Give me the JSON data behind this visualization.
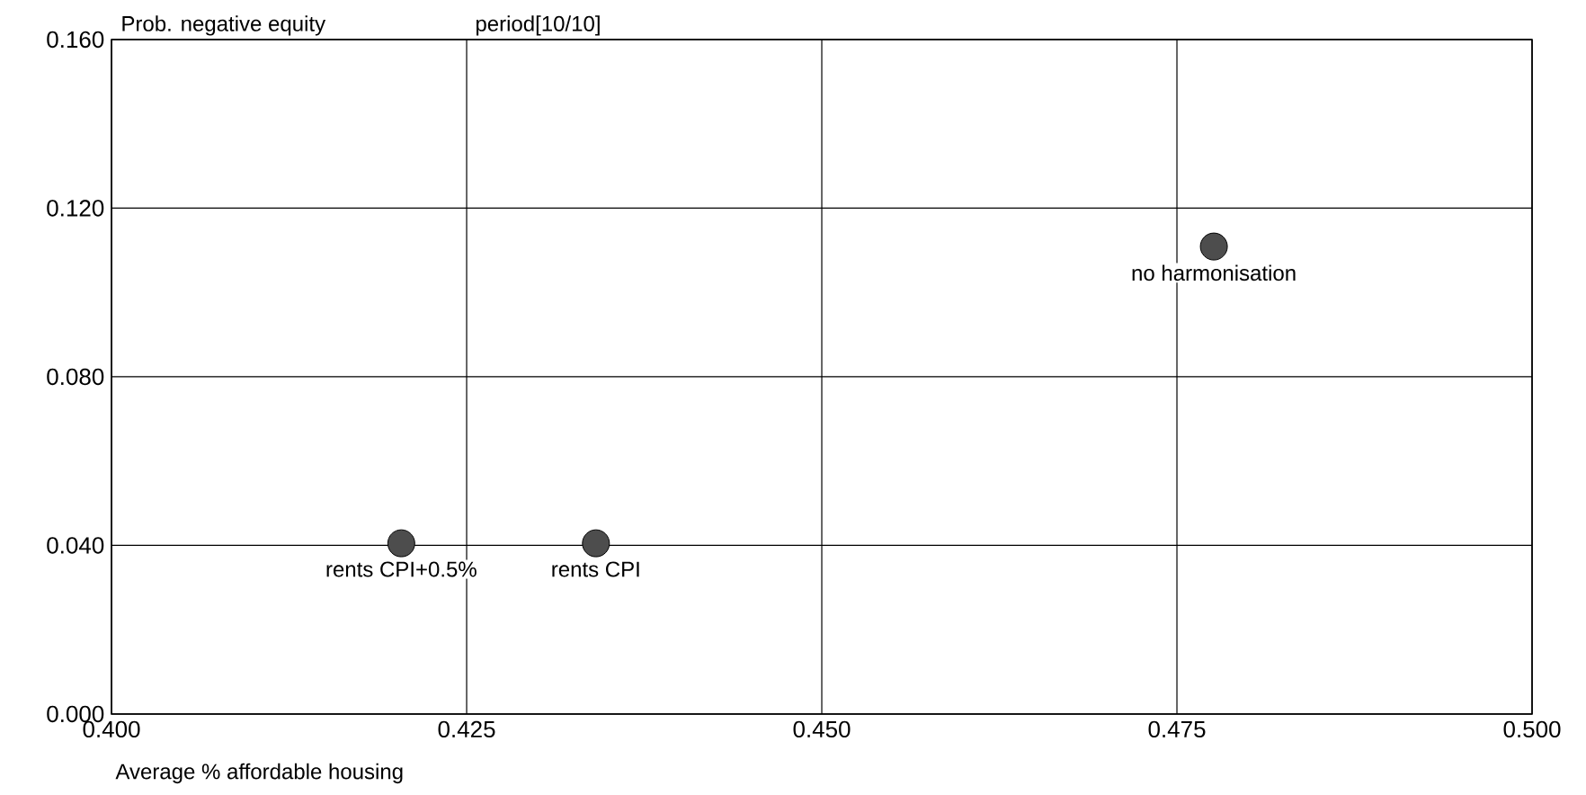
{
  "chart_data": {
    "type": "scatter",
    "title": "period[10/10]",
    "ylabel": "Prob. negative equity",
    "xlabel": "Average % affordable housing",
    "x": [
      0.4204,
      0.4341,
      0.4776
    ],
    "values": [
      0.0405,
      0.0405,
      0.1109
    ],
    "color": "#4d4d4d",
    "grid": true,
    "xlim": [
      0.4,
      0.5
    ],
    "ylim": [
      0,
      0.16
    ],
    "xticks": [
      {
        "value": 0.4,
        "label": "0.400"
      },
      {
        "value": 0.425,
        "label": "0.425"
      },
      {
        "value": 0.45,
        "label": "0.450"
      },
      {
        "value": 0.475,
        "label": "0.475"
      },
      {
        "value": 0.5,
        "label": "0.500"
      }
    ],
    "yticks": [
      {
        "value": 0,
        "label": "0.000"
      },
      {
        "value": 0.04,
        "label": "0.040"
      },
      {
        "value": 0.08,
        "label": "0.080"
      },
      {
        "value": 0.12,
        "label": "0.120"
      },
      {
        "value": 0.16,
        "label": "0.160"
      }
    ],
    "annotations": [
      {
        "text": "rents CPI+0.5%",
        "x": 0.4204,
        "y": 0.0405
      },
      {
        "text": "rents CPI",
        "x": 0.4341,
        "y": 0.0405
      },
      {
        "text": "no harmonisation",
        "x": 0.4776,
        "y": 0.1109
      }
    ]
  }
}
